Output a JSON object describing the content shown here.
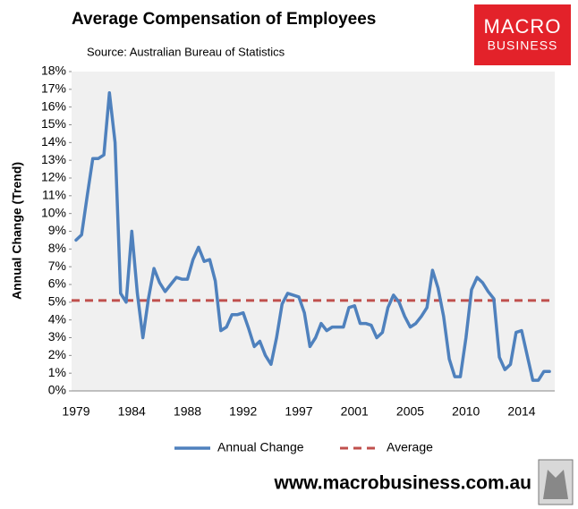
{
  "chart_data": {
    "type": "line",
    "title": "Average Compensation of Employees",
    "subtitle": "Source: Australian Bureau of Statistics",
    "logo": {
      "line1": "MACRO",
      "line2": "BUSINESS"
    },
    "footer": "www.macrobusiness.com.au",
    "y_label": "Annual Change (Trend)",
    "categories": [
      "1979",
      null,
      null,
      null,
      null,
      null,
      null,
      null,
      null,
      null,
      "1984",
      null,
      null,
      null,
      null,
      null,
      null,
      null,
      null,
      null,
      "1988",
      null,
      null,
      null,
      null,
      null,
      null,
      null,
      null,
      null,
      "1992",
      null,
      null,
      null,
      null,
      null,
      null,
      null,
      null,
      null,
      "1997",
      null,
      null,
      null,
      null,
      null,
      null,
      null,
      null,
      null,
      "2001",
      null,
      null,
      null,
      null,
      null,
      null,
      null,
      null,
      null,
      "2005",
      null,
      null,
      null,
      null,
      null,
      null,
      null,
      null,
      null,
      "2010",
      null,
      null,
      null,
      null,
      null,
      null,
      null,
      null,
      null,
      "2014",
      null,
      null,
      null,
      null,
      null
    ],
    "series": [
      {
        "name": "Annual Change",
        "color": "#4f81bd",
        "values": [
          8.5,
          8.8,
          11,
          13.1,
          13.1,
          13.3,
          16.8,
          14,
          5.5,
          5,
          9,
          5.5,
          3.0,
          5.2,
          6.9,
          6.1,
          5.6,
          6,
          6.4,
          6.3,
          6.3,
          7.4,
          8.1,
          7.3,
          7.4,
          6.2,
          3.4,
          3.6,
          4.3,
          4.3,
          4.4,
          3.5,
          2.5,
          2.8,
          2.0,
          1.5,
          3.0,
          4.9,
          5.5,
          5.4,
          5.3,
          4.4,
          2.5,
          3.0,
          3.8,
          3.4,
          3.6,
          3.6,
          3.6,
          4.7,
          4.8,
          3.8,
          3.8,
          3.7,
          3.0,
          3.3,
          4.7,
          5.4,
          5.0,
          4.2,
          3.6,
          3.8,
          4.2,
          4.7,
          6.8,
          5.8,
          4.2,
          1.8,
          0.8,
          0.8,
          3.0,
          5.7,
          6.4,
          6.1,
          5.6,
          5.2,
          1.9,
          1.2,
          1.5,
          3.3,
          3.4,
          2.0,
          0.6,
          0.6,
          1.1,
          1.1
        ]
      }
    ],
    "reference_lines": [
      {
        "name": "Average",
        "color": "#c0504d",
        "value": 5.1,
        "dashed": true
      }
    ],
    "ylim": [
      0,
      18
    ],
    "yticks": [
      {
        "value": 0,
        "label": "0%"
      },
      {
        "value": 1,
        "label": "1%"
      },
      {
        "value": 2,
        "label": "2%"
      },
      {
        "value": 3,
        "label": "3%"
      },
      {
        "value": 4,
        "label": "4%"
      },
      {
        "value": 5,
        "label": "5%"
      },
      {
        "value": 6,
        "label": "6%"
      },
      {
        "value": 7,
        "label": "7%"
      },
      {
        "value": 8,
        "label": "8%"
      },
      {
        "value": 9,
        "label": "9%"
      },
      {
        "value": 10,
        "label": "10%"
      },
      {
        "value": 11,
        "label": "11%"
      },
      {
        "value": 12,
        "label": "12%"
      },
      {
        "value": 13,
        "label": "13%"
      },
      {
        "value": 14,
        "label": "14%"
      },
      {
        "value": 15,
        "label": "15%"
      },
      {
        "value": 16,
        "label": "16%"
      },
      {
        "value": 17,
        "label": "17%"
      },
      {
        "value": 18,
        "label": "18%"
      }
    ],
    "grid": false,
    "legend": "bottom"
  }
}
